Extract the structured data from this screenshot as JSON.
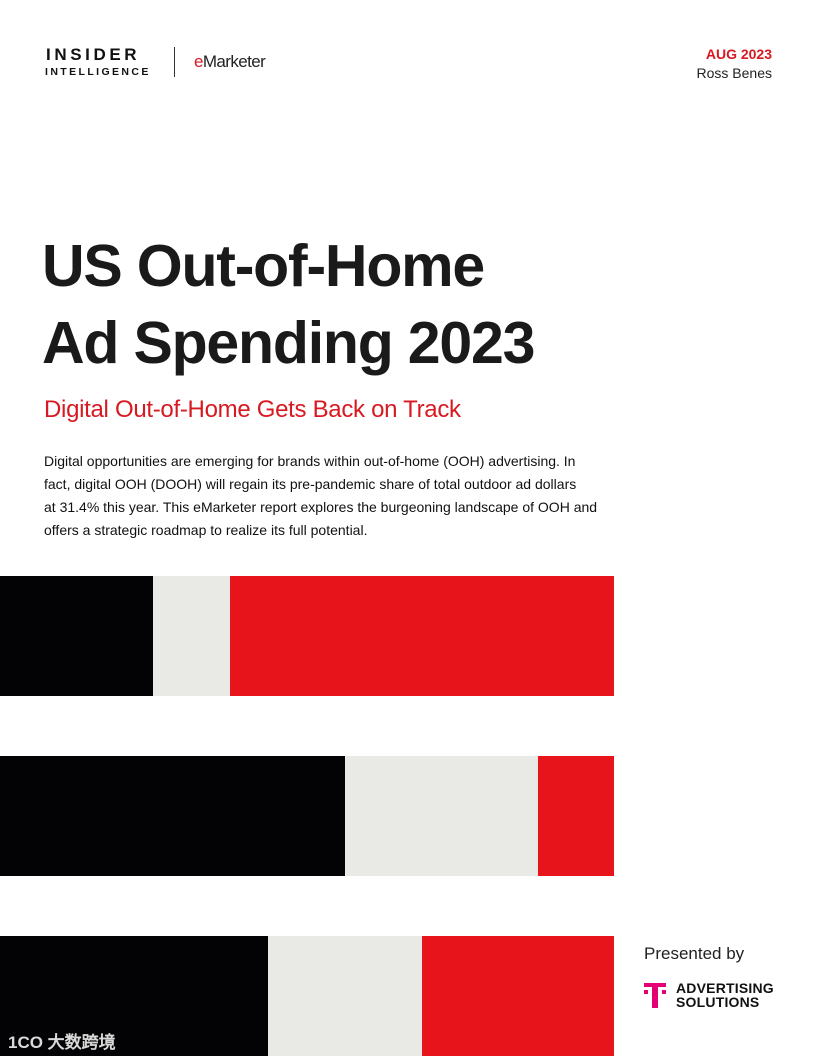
{
  "header": {
    "brand_line1": "INSIDER",
    "brand_line2": "INTELLIGENCE",
    "partner_prefix": "e",
    "partner_name": "Marketer",
    "date": "AUG 2023",
    "author": "Ross Benes"
  },
  "title": {
    "line1": "US Out-of-Home",
    "line2": "Ad Spending 2023"
  },
  "subtitle": "Digital Out-of-Home Gets Back on Track",
  "summary": [
    "Digital opportunities are emerging for brands within out-of-home (OOH) advertising. In",
    "fact, digital OOH (DOOH) will regain its pre-pandemic share of total outdoor ad dollars",
    "at 31.4% this year. This eMarketer report explores the burgeoning landscape of OOH and",
    "offers a strategic roadmap to realize its full potential."
  ],
  "sponsor": {
    "label": "Presented by",
    "name_line1": "ADVERTISING",
    "name_line2": "SOLUTIONS"
  },
  "watermark": "1CO 大数跨境"
}
